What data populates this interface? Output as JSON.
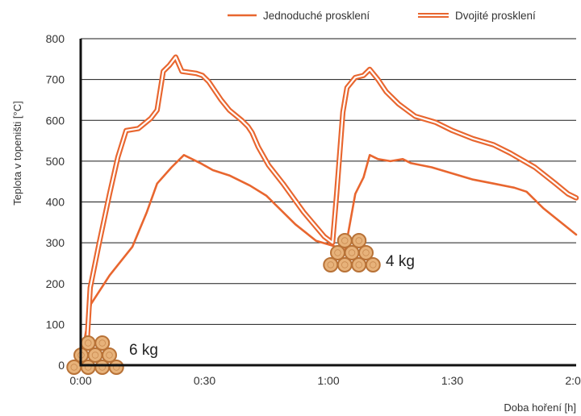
{
  "chart_data": {
    "type": "line",
    "ylabel": "Teplota v topeništi [°C]",
    "xlabel": "Doba hoření [h]",
    "ylim": [
      0,
      800
    ],
    "yticks": [
      0,
      100,
      200,
      300,
      400,
      500,
      600,
      700,
      800
    ],
    "xlim": [
      0,
      120
    ],
    "xticks": [
      0,
      30,
      60,
      90,
      120
    ],
    "xtick_labels": [
      "0:00",
      "0:30",
      "1:00",
      "1:30",
      "2:00"
    ],
    "grid": "horizontal",
    "legend_position": "top-right",
    "colors": {
      "series": "#e8662f",
      "wood_light": "#e7b27a",
      "wood_dark": "#b87237"
    },
    "series": [
      {
        "name": "Jednoduché prosklení",
        "style": "single",
        "x": [
          0.5,
          2.5,
          7,
          12.5,
          16,
          18.5,
          22,
          25,
          29,
          32,
          36,
          41,
          45,
          52,
          57,
          62,
          64,
          66.5,
          68.5,
          70,
          72,
          75,
          78,
          80,
          85,
          90,
          95,
          100,
          105,
          108,
          112,
          120
        ],
        "y": [
          40,
          150,
          220,
          290,
          375,
          445,
          485,
          515,
          495,
          478,
          465,
          440,
          415,
          345,
          305,
          290,
          280,
          420,
          460,
          515,
          505,
          500,
          505,
          495,
          485,
          470,
          455,
          445,
          435,
          425,
          385,
          320
        ]
      },
      {
        "name": "Dvojité prosklení",
        "style": "double",
        "x": [
          1.5,
          2.3,
          4.5,
          7,
          9,
          11,
          14,
          17,
          18.5,
          20,
          21.5,
          23,
          24.5,
          28,
          29.5,
          31,
          34,
          36,
          39,
          40.5,
          41.5,
          43,
          45.5,
          49,
          54,
          59,
          61,
          62,
          63.5,
          64.5,
          66.5,
          68.5,
          70,
          72,
          74,
          77,
          81,
          86,
          90,
          95,
          100,
          104,
          110,
          115,
          118,
          120
        ],
        "y": [
          50,
          190,
          300,
          420,
          510,
          575,
          580,
          605,
          625,
          720,
          735,
          755,
          720,
          715,
          710,
          695,
          650,
          625,
          600,
          585,
          570,
          535,
          490,
          445,
          375,
          315,
          300,
          420,
          620,
          680,
          705,
          710,
          725,
          700,
          670,
          640,
          610,
          595,
          575,
          555,
          540,
          520,
          485,
          445,
          420,
          410
        ]
      }
    ],
    "annotations": [
      {
        "label": "6 kg",
        "x": 4,
        "y": 0
      },
      {
        "label": "4 kg",
        "x": 64,
        "y": 275
      }
    ]
  }
}
